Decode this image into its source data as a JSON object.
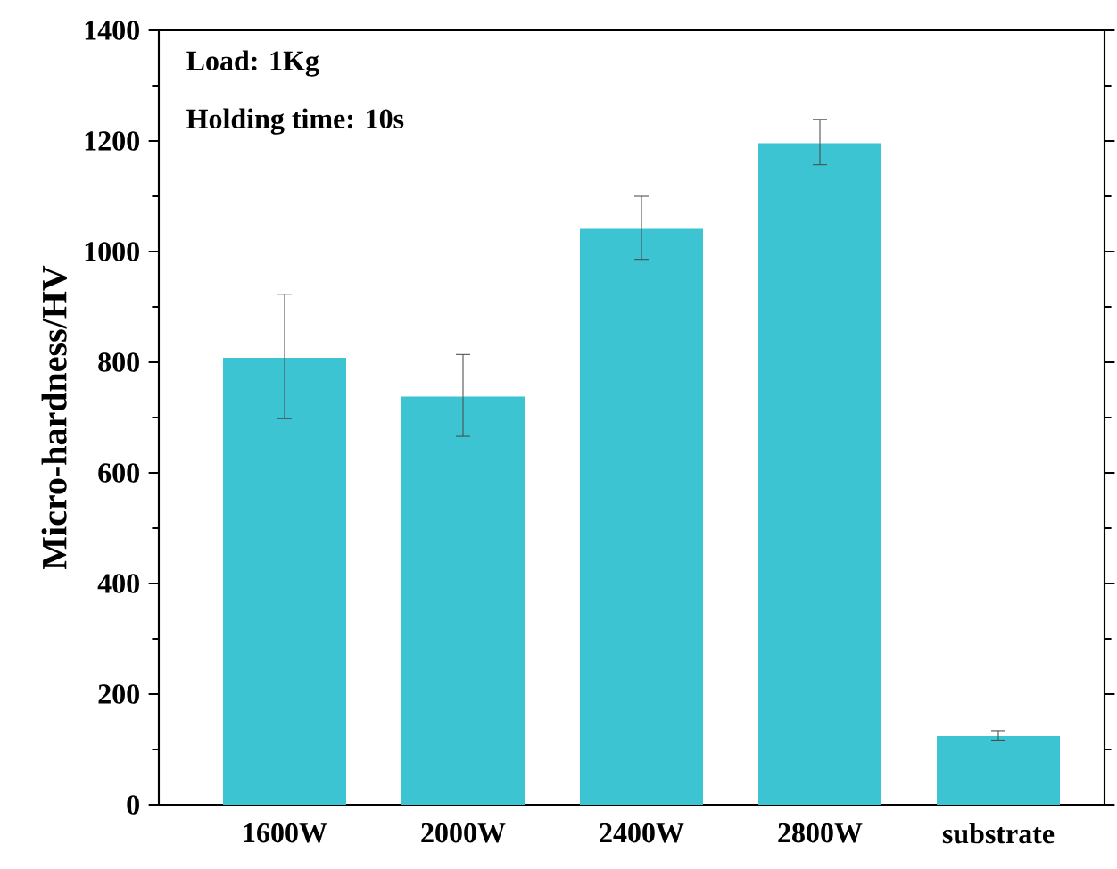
{
  "chart_data": {
    "type": "bar",
    "ylabel": "Micro-hardness/HV",
    "categories": [
      "1600W",
      "2000W",
      "2400W",
      "2800W",
      "substrate"
    ],
    "values": [
      808,
      738,
      1041,
      1196,
      124
    ],
    "errors": [
      [
        698,
        923
      ],
      [
        666,
        814
      ],
      [
        986,
        1100
      ],
      [
        1157,
        1239
      ],
      [
        117,
        134
      ]
    ],
    "color": "#3cc4d2",
    "ylim": [
      0,
      1400
    ],
    "yticks": [
      0,
      200,
      400,
      600,
      800,
      1000,
      1200,
      1400
    ],
    "annotations": [
      "Load: 1Kg",
      "Holding time: 10s"
    ]
  }
}
